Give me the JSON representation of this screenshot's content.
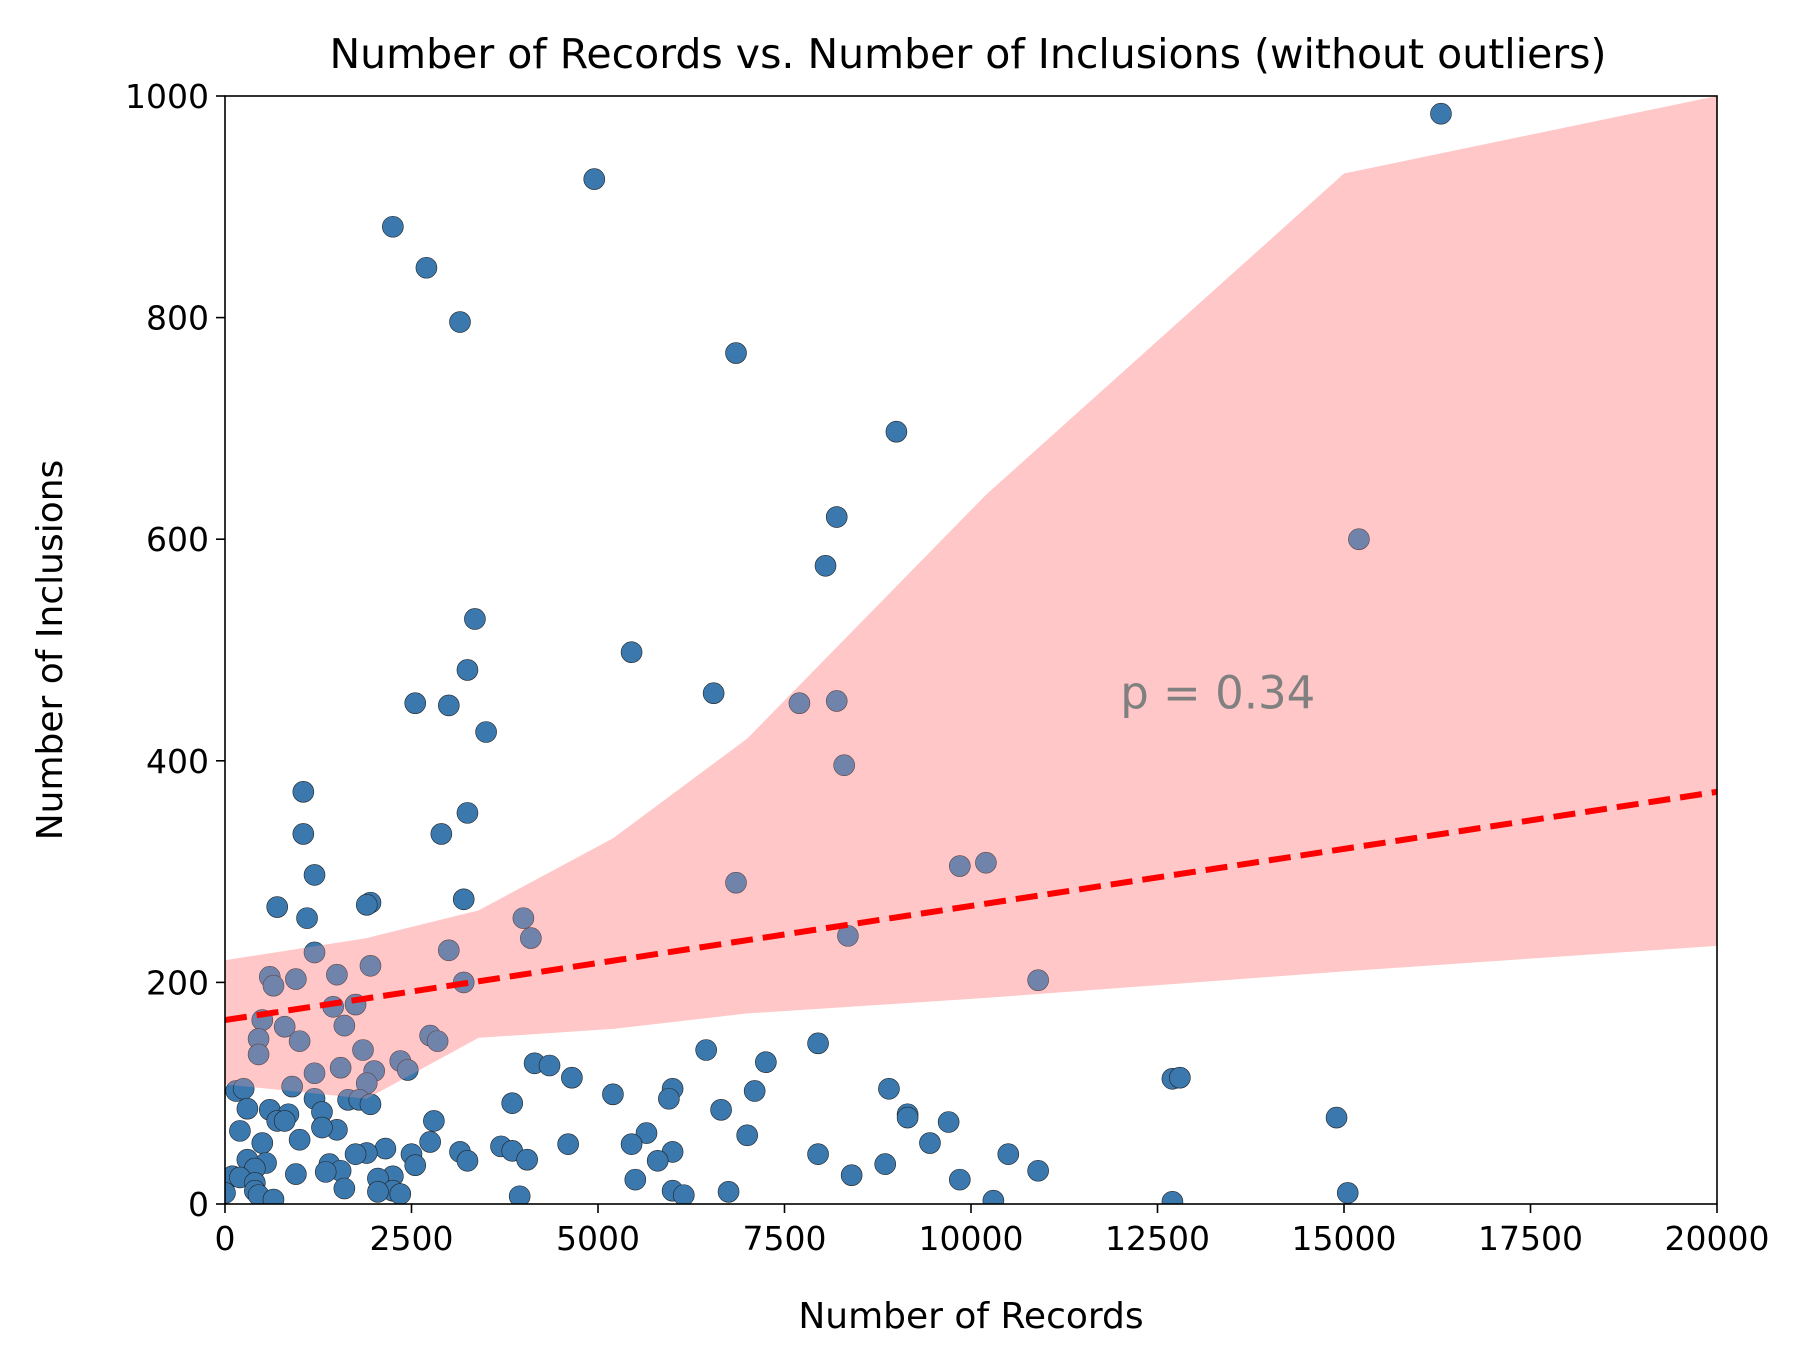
{
  "chart_data": {
    "type": "scatter",
    "title": "Number of Records vs. Number of Inclusions (without outliers)",
    "xlabel": "Number of Records",
    "ylabel": "Number of Inclusions",
    "xlim": [
      0,
      20000
    ],
    "ylim": [
      0,
      1000
    ],
    "x_ticks": [
      "0",
      "2500",
      "5000",
      "7500",
      "10000",
      "12500",
      "15000",
      "17500",
      "20000"
    ],
    "y_ticks": [
      "0",
      "200",
      "400",
      "600",
      "800",
      "1000"
    ],
    "grid": false,
    "annotation": "p = 0.34",
    "annotation_position": [
      12000,
      460
    ],
    "regression_line": {
      "x": [
        0,
        20000
      ],
      "y": [
        166,
        372
      ]
    },
    "confidence_band": {
      "x": [
        0,
        1900,
        3400,
        5200,
        7000,
        10200,
        15000,
        20000
      ],
      "upper": [
        220,
        240,
        265,
        330,
        420,
        640,
        930,
        1000
      ],
      "lower": [
        108,
        95,
        150,
        158,
        172,
        186,
        210,
        233
      ]
    },
    "colors": {
      "points": "#3a78ae",
      "band": "#ffa3a3",
      "line": "#ff0000",
      "annotation": "#808080"
    },
    "points": [
      [
        16300,
        984
      ],
      [
        4950,
        925
      ],
      [
        2250,
        882
      ],
      [
        2700,
        845
      ],
      [
        3150,
        796
      ],
      [
        6850,
        768
      ],
      [
        9000,
        697
      ],
      [
        8200,
        620
      ],
      [
        15200,
        600
      ],
      [
        8050,
        576
      ],
      [
        3350,
        528
      ],
      [
        5450,
        498
      ],
      [
        3250,
        482
      ],
      [
        6550,
        461
      ],
      [
        7700,
        452
      ],
      [
        8200,
        454
      ],
      [
        2550,
        452
      ],
      [
        3000,
        450
      ],
      [
        3500,
        426
      ],
      [
        8300,
        396
      ],
      [
        1050,
        372
      ],
      [
        3250,
        353
      ],
      [
        1050,
        334
      ],
      [
        2900,
        334
      ],
      [
        9850,
        305
      ],
      [
        10200,
        308
      ],
      [
        1200,
        297
      ],
      [
        6850,
        290
      ],
      [
        3200,
        275
      ],
      [
        1950,
        272
      ],
      [
        1900,
        270
      ],
      [
        700,
        268
      ],
      [
        4000,
        258
      ],
      [
        1100,
        258
      ],
      [
        8350,
        242
      ],
      [
        4100,
        240
      ],
      [
        3000,
        229
      ],
      [
        1200,
        227
      ],
      [
        1950,
        215
      ],
      [
        1500,
        207
      ],
      [
        600,
        205
      ],
      [
        950,
        203
      ],
      [
        10900,
        202
      ],
      [
        3200,
        200
      ],
      [
        650,
        197
      ],
      [
        1750,
        180
      ],
      [
        1450,
        178
      ],
      [
        500,
        166
      ],
      [
        1600,
        161
      ],
      [
        800,
        160
      ],
      [
        2750,
        152
      ],
      [
        2850,
        147
      ],
      [
        1000,
        147
      ],
      [
        450,
        149
      ],
      [
        7950,
        145
      ],
      [
        1850,
        139
      ],
      [
        6450,
        139
      ],
      [
        450,
        135
      ],
      [
        2350,
        129
      ],
      [
        4150,
        127
      ],
      [
        7250,
        128
      ],
      [
        4350,
        125
      ],
      [
        1550,
        123
      ],
      [
        2450,
        121
      ],
      [
        2000,
        120
      ],
      [
        1200,
        118
      ],
      [
        4650,
        114
      ],
      [
        12700,
        113
      ],
      [
        12800,
        114
      ],
      [
        1900,
        109
      ],
      [
        900,
        106
      ],
      [
        8900,
        104
      ],
      [
        7100,
        102
      ],
      [
        150,
        102
      ],
      [
        250,
        104
      ],
      [
        6000,
        104
      ],
      [
        5200,
        99
      ],
      [
        5950,
        95
      ],
      [
        1200,
        95
      ],
      [
        1650,
        94
      ],
      [
        1800,
        94
      ],
      [
        3850,
        91
      ],
      [
        1950,
        90
      ],
      [
        300,
        86
      ],
      [
        6650,
        85
      ],
      [
        1300,
        83
      ],
      [
        9150,
        81
      ],
      [
        600,
        85
      ],
      [
        850,
        81
      ],
      [
        9150,
        78
      ],
      [
        14900,
        78
      ],
      [
        700,
        75
      ],
      [
        800,
        75
      ],
      [
        2800,
        75
      ],
      [
        9700,
        74
      ],
      [
        200,
        66
      ],
      [
        1500,
        67
      ],
      [
        1300,
        69
      ],
      [
        5650,
        64
      ],
      [
        7000,
        62
      ],
      [
        1000,
        58
      ],
      [
        9450,
        55
      ],
      [
        2750,
        56
      ],
      [
        500,
        55
      ],
      [
        5450,
        54
      ],
      [
        4600,
        54
      ],
      [
        3700,
        52
      ],
      [
        2150,
        50
      ],
      [
        3850,
        48
      ],
      [
        1900,
        46
      ],
      [
        3150,
        47
      ],
      [
        6000,
        47
      ],
      [
        7950,
        45
      ],
      [
        10500,
        45
      ],
      [
        2500,
        45
      ],
      [
        1750,
        45
      ],
      [
        4050,
        40
      ],
      [
        300,
        40
      ],
      [
        3250,
        39
      ],
      [
        5800,
        39
      ],
      [
        550,
        37
      ],
      [
        1400,
        36
      ],
      [
        8850,
        36
      ],
      [
        2550,
        35
      ],
      [
        400,
        32
      ],
      [
        1550,
        30
      ],
      [
        10900,
        30
      ],
      [
        1350,
        29
      ],
      [
        950,
        27
      ],
      [
        8400,
        26
      ],
      [
        2250,
        25
      ],
      [
        100,
        25
      ],
      [
        200,
        24
      ],
      [
        2050,
        23
      ],
      [
        5500,
        22
      ],
      [
        9850,
        22
      ],
      [
        400,
        19
      ],
      [
        1600,
        14
      ],
      [
        2250,
        12
      ],
      [
        6000,
        12
      ],
      [
        6750,
        11
      ],
      [
        15050,
        10
      ],
      [
        400,
        12
      ],
      [
        2050,
        11
      ],
      [
        2350,
        9
      ],
      [
        0,
        10
      ],
      [
        3950,
        7
      ],
      [
        6150,
        8
      ],
      [
        450,
        8
      ],
      [
        650,
        4
      ],
      [
        10300,
        3
      ],
      [
        12700,
        2
      ]
    ]
  }
}
